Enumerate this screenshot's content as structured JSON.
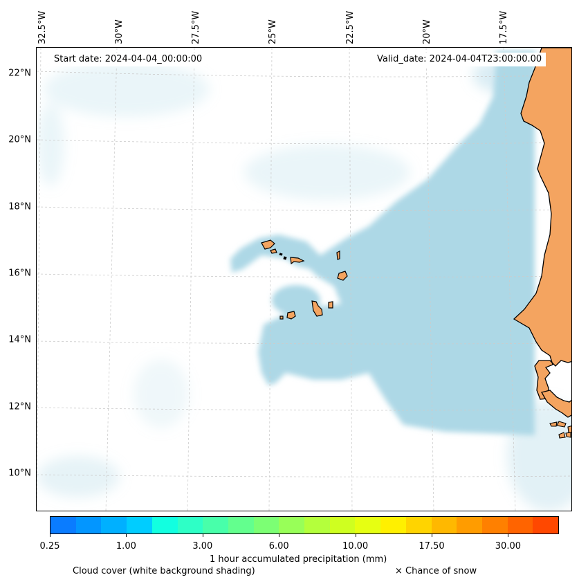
{
  "header": {
    "start_date": "Start date: 2024-04-04_00:00:00",
    "valid_date": "Valid_date: 2024-04-04T23:00:00.00"
  },
  "axes": {
    "lon_labels": [
      "32.5°W",
      "30°W",
      "27.5°W",
      "25°W",
      "22.5°W",
      "20°W",
      "17.5°W"
    ],
    "lat_labels": [
      "22°N",
      "20°N",
      "18°N",
      "16°N",
      "14°N",
      "12°N",
      "10°N"
    ]
  },
  "colorbar": {
    "colors": [
      "#0a7cff",
      "#0396ff",
      "#00b0ff",
      "#00cdff",
      "#12ffe0",
      "#2effc6",
      "#48ffaa",
      "#63ff8e",
      "#7cff74",
      "#98ff58",
      "#b4ff3c",
      "#cfff20",
      "#e6ff12",
      "#fff000",
      "#ffd400",
      "#ffb800",
      "#ff9c00",
      "#ff8000",
      "#ff6400",
      "#ff4800"
    ],
    "tick_labels": [
      "0.25",
      "1.00",
      "3.00",
      "6.00",
      "10.00",
      "17.50",
      "30.00"
    ],
    "label": "1 hour accumulated precipitation (mm)"
  },
  "legend": {
    "cloud_cover": "Cloud cover (white background shading)",
    "snow": "× Chance of snow"
  },
  "map_colors": {
    "land": "#f4a460",
    "cloud": "#add8e6",
    "grid": "#cccccc"
  }
}
